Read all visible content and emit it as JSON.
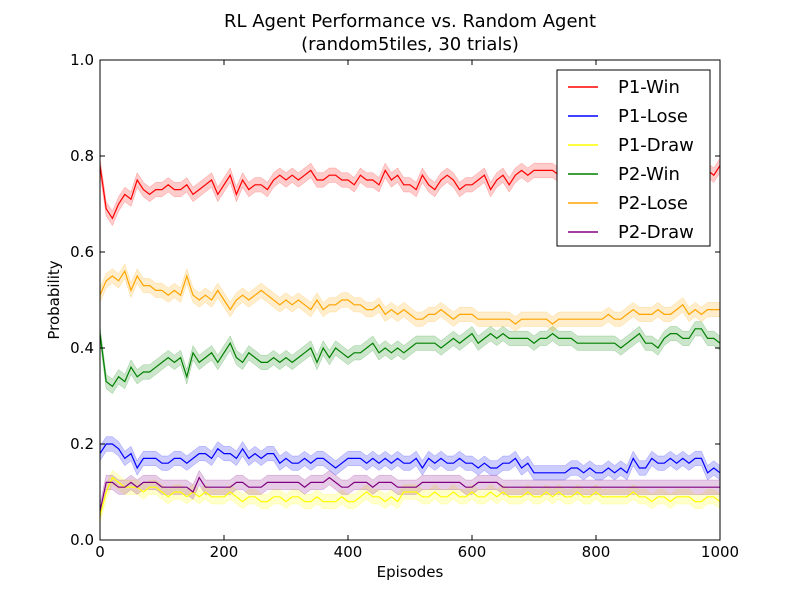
{
  "chart_data": {
    "type": "line",
    "title": "RL Agent Performance vs. Random Agent",
    "subtitle": "(random5tiles, 30 trials)",
    "xlabel": "Episodes",
    "ylabel": "Probability",
    "xlim": [
      0,
      1000
    ],
    "ylim": [
      0.0,
      1.0
    ],
    "xticks": [
      0,
      200,
      400,
      600,
      800,
      1000
    ],
    "yticks": [
      0.0,
      0.2,
      0.4,
      0.6,
      0.8,
      1.0
    ],
    "xtick_labels": [
      "0",
      "200",
      "400",
      "600",
      "800",
      "1000"
    ],
    "ytick_labels": [
      "0.0",
      "0.2",
      "0.4",
      "0.6",
      "0.8",
      "1.0"
    ],
    "legend_position": "top-right",
    "band_halfwidth": 0.015,
    "x": [
      0,
      10,
      20,
      30,
      40,
      50,
      60,
      70,
      80,
      90,
      100,
      110,
      120,
      130,
      140,
      150,
      160,
      170,
      180,
      190,
      200,
      210,
      220,
      230,
      240,
      250,
      260,
      270,
      280,
      290,
      300,
      310,
      320,
      330,
      340,
      350,
      360,
      370,
      380,
      390,
      400,
      410,
      420,
      430,
      440,
      450,
      460,
      470,
      480,
      490,
      500,
      510,
      520,
      530,
      540,
      550,
      560,
      570,
      580,
      590,
      600,
      610,
      620,
      630,
      640,
      650,
      660,
      670,
      680,
      690,
      700,
      710,
      720,
      730,
      740,
      750,
      760,
      770,
      780,
      790,
      800,
      810,
      820,
      830,
      840,
      850,
      860,
      870,
      880,
      890,
      900,
      910,
      920,
      930,
      940,
      950,
      960,
      970,
      980,
      990,
      1000
    ],
    "series": [
      {
        "name": "P1-Win",
        "color": "#ff0000",
        "values": [
          0.78,
          0.69,
          0.67,
          0.7,
          0.72,
          0.71,
          0.75,
          0.73,
          0.72,
          0.73,
          0.73,
          0.74,
          0.73,
          0.73,
          0.74,
          0.72,
          0.73,
          0.74,
          0.75,
          0.72,
          0.74,
          0.76,
          0.72,
          0.75,
          0.73,
          0.74,
          0.74,
          0.73,
          0.75,
          0.76,
          0.75,
          0.76,
          0.75,
          0.76,
          0.77,
          0.75,
          0.75,
          0.76,
          0.76,
          0.75,
          0.75,
          0.74,
          0.76,
          0.75,
          0.75,
          0.74,
          0.77,
          0.75,
          0.76,
          0.74,
          0.74,
          0.73,
          0.76,
          0.74,
          0.73,
          0.75,
          0.76,
          0.75,
          0.73,
          0.74,
          0.74,
          0.75,
          0.76,
          0.73,
          0.75,
          0.76,
          0.74,
          0.76,
          0.77,
          0.76,
          0.77,
          0.77,
          0.77,
          0.77,
          0.76,
          0.76,
          0.77,
          0.77,
          0.76,
          0.76,
          0.77,
          0.77,
          0.77,
          0.77,
          0.77,
          0.77,
          0.77,
          0.77,
          0.76,
          0.77,
          0.77,
          0.76,
          0.77,
          0.77,
          0.76,
          0.77,
          0.76,
          0.77,
          0.77,
          0.76,
          0.78
        ]
      },
      {
        "name": "P1-Lose",
        "color": "#0000ff",
        "values": [
          0.18,
          0.2,
          0.2,
          0.19,
          0.17,
          0.18,
          0.15,
          0.17,
          0.17,
          0.17,
          0.16,
          0.16,
          0.17,
          0.17,
          0.16,
          0.17,
          0.18,
          0.18,
          0.17,
          0.19,
          0.18,
          0.18,
          0.17,
          0.19,
          0.17,
          0.18,
          0.17,
          0.18,
          0.18,
          0.16,
          0.17,
          0.16,
          0.16,
          0.17,
          0.16,
          0.17,
          0.17,
          0.16,
          0.15,
          0.16,
          0.17,
          0.17,
          0.17,
          0.16,
          0.17,
          0.16,
          0.17,
          0.16,
          0.17,
          0.16,
          0.16,
          0.17,
          0.15,
          0.17,
          0.16,
          0.17,
          0.16,
          0.16,
          0.17,
          0.16,
          0.16,
          0.15,
          0.16,
          0.15,
          0.15,
          0.16,
          0.16,
          0.17,
          0.15,
          0.16,
          0.14,
          0.14,
          0.14,
          0.14,
          0.14,
          0.14,
          0.15,
          0.15,
          0.14,
          0.15,
          0.14,
          0.14,
          0.15,
          0.14,
          0.15,
          0.14,
          0.17,
          0.15,
          0.15,
          0.17,
          0.16,
          0.16,
          0.17,
          0.16,
          0.17,
          0.16,
          0.17,
          0.17,
          0.14,
          0.15,
          0.14
        ]
      },
      {
        "name": "P1-Draw",
        "color": "#ffff00",
        "values": [
          0.05,
          0.1,
          0.13,
          0.12,
          0.11,
          0.11,
          0.11,
          0.1,
          0.11,
          0.11,
          0.1,
          0.09,
          0.1,
          0.1,
          0.09,
          0.1,
          0.09,
          0.1,
          0.09,
          0.09,
          0.09,
          0.1,
          0.09,
          0.08,
          0.09,
          0.09,
          0.08,
          0.08,
          0.09,
          0.09,
          0.08,
          0.09,
          0.09,
          0.08,
          0.08,
          0.09,
          0.08,
          0.08,
          0.08,
          0.09,
          0.08,
          0.08,
          0.09,
          0.1,
          0.09,
          0.09,
          0.08,
          0.09,
          0.08,
          0.1,
          0.1,
          0.1,
          0.09,
          0.09,
          0.1,
          0.09,
          0.09,
          0.1,
          0.09,
          0.09,
          0.1,
          0.09,
          0.09,
          0.1,
          0.09,
          0.1,
          0.09,
          0.09,
          0.09,
          0.1,
          0.09,
          0.09,
          0.1,
          0.09,
          0.1,
          0.09,
          0.09,
          0.1,
          0.09,
          0.09,
          0.1,
          0.09,
          0.09,
          0.09,
          0.09,
          0.09,
          0.1,
          0.09,
          0.09,
          0.08,
          0.09,
          0.09,
          0.08,
          0.09,
          0.09,
          0.09,
          0.08,
          0.08,
          0.09,
          0.09,
          0.08
        ]
      },
      {
        "name": "P2-Win",
        "color": "#008000",
        "values": [
          0.43,
          0.33,
          0.32,
          0.34,
          0.33,
          0.36,
          0.34,
          0.35,
          0.35,
          0.36,
          0.37,
          0.38,
          0.37,
          0.38,
          0.34,
          0.39,
          0.37,
          0.38,
          0.39,
          0.37,
          0.39,
          0.41,
          0.38,
          0.37,
          0.39,
          0.38,
          0.37,
          0.37,
          0.38,
          0.37,
          0.38,
          0.37,
          0.38,
          0.39,
          0.4,
          0.37,
          0.4,
          0.38,
          0.4,
          0.39,
          0.38,
          0.39,
          0.39,
          0.4,
          0.41,
          0.39,
          0.4,
          0.39,
          0.4,
          0.39,
          0.4,
          0.41,
          0.41,
          0.41,
          0.41,
          0.4,
          0.41,
          0.42,
          0.41,
          0.42,
          0.43,
          0.41,
          0.42,
          0.43,
          0.42,
          0.43,
          0.42,
          0.42,
          0.42,
          0.42,
          0.41,
          0.42,
          0.42,
          0.43,
          0.42,
          0.42,
          0.42,
          0.41,
          0.41,
          0.41,
          0.41,
          0.41,
          0.41,
          0.41,
          0.4,
          0.41,
          0.42,
          0.43,
          0.41,
          0.41,
          0.4,
          0.42,
          0.43,
          0.43,
          0.42,
          0.42,
          0.44,
          0.44,
          0.42,
          0.42,
          0.41
        ]
      },
      {
        "name": "P2-Lose",
        "color": "#ffa500",
        "values": [
          0.51,
          0.54,
          0.55,
          0.54,
          0.56,
          0.52,
          0.55,
          0.53,
          0.53,
          0.52,
          0.52,
          0.51,
          0.52,
          0.51,
          0.55,
          0.51,
          0.5,
          0.51,
          0.5,
          0.52,
          0.5,
          0.48,
          0.5,
          0.51,
          0.5,
          0.51,
          0.52,
          0.51,
          0.5,
          0.49,
          0.5,
          0.49,
          0.5,
          0.49,
          0.48,
          0.5,
          0.48,
          0.49,
          0.49,
          0.5,
          0.5,
          0.49,
          0.49,
          0.48,
          0.48,
          0.49,
          0.47,
          0.48,
          0.47,
          0.48,
          0.47,
          0.46,
          0.46,
          0.47,
          0.47,
          0.48,
          0.47,
          0.46,
          0.47,
          0.47,
          0.47,
          0.46,
          0.46,
          0.46,
          0.46,
          0.46,
          0.46,
          0.45,
          0.46,
          0.46,
          0.46,
          0.46,
          0.46,
          0.45,
          0.46,
          0.46,
          0.46,
          0.46,
          0.46,
          0.46,
          0.46,
          0.46,
          0.47,
          0.46,
          0.46,
          0.47,
          0.48,
          0.47,
          0.47,
          0.47,
          0.48,
          0.47,
          0.47,
          0.48,
          0.49,
          0.47,
          0.48,
          0.47,
          0.48,
          0.48,
          0.48
        ]
      },
      {
        "name": "P2-Draw",
        "color": "#800080",
        "values": [
          0.06,
          0.12,
          0.12,
          0.11,
          0.11,
          0.12,
          0.11,
          0.12,
          0.12,
          0.12,
          0.11,
          0.11,
          0.11,
          0.11,
          0.11,
          0.1,
          0.13,
          0.11,
          0.11,
          0.11,
          0.11,
          0.11,
          0.12,
          0.12,
          0.11,
          0.11,
          0.11,
          0.12,
          0.12,
          0.12,
          0.12,
          0.12,
          0.12,
          0.11,
          0.12,
          0.12,
          0.12,
          0.13,
          0.12,
          0.11,
          0.11,
          0.12,
          0.12,
          0.12,
          0.11,
          0.12,
          0.12,
          0.12,
          0.11,
          0.11,
          0.11,
          0.11,
          0.12,
          0.12,
          0.12,
          0.12,
          0.12,
          0.12,
          0.12,
          0.11,
          0.11,
          0.12,
          0.12,
          0.12,
          0.12,
          0.11,
          0.11,
          0.11,
          0.11,
          0.11,
          0.11,
          0.11,
          0.11,
          0.11,
          0.11,
          0.11,
          0.11,
          0.11,
          0.11,
          0.11,
          0.11,
          0.11,
          0.11,
          0.11,
          0.11,
          0.11,
          0.11,
          0.11,
          0.11,
          0.11,
          0.11,
          0.11,
          0.11,
          0.11,
          0.11,
          0.11,
          0.11,
          0.11,
          0.11,
          0.11,
          0.11
        ]
      }
    ]
  }
}
